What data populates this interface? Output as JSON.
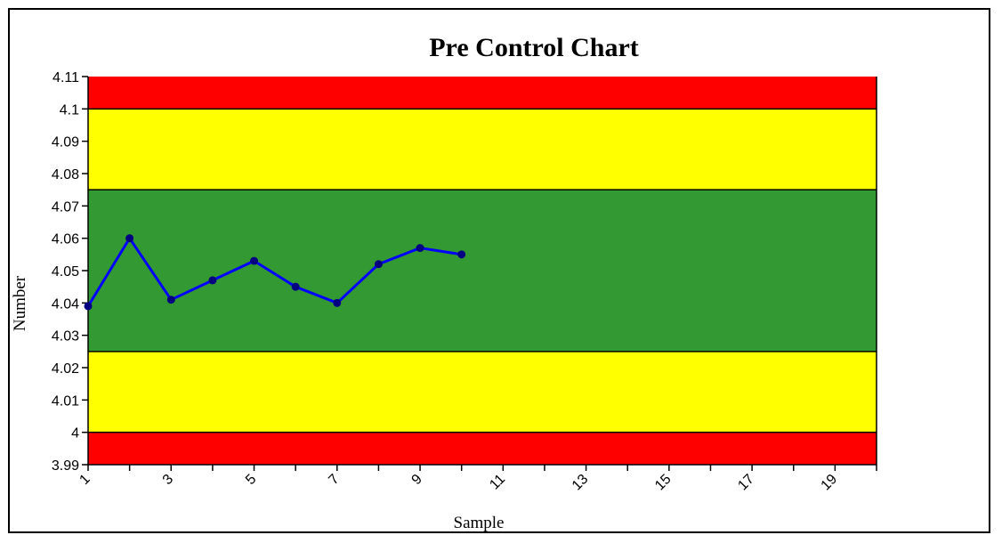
{
  "chart_data": {
    "type": "line",
    "title": "Pre Control Chart",
    "xlabel": "Sample",
    "ylabel": "Number",
    "x_categories": [
      1,
      2,
      3,
      4,
      5,
      6,
      7,
      8,
      9,
      10,
      11,
      12,
      13,
      14,
      15,
      16,
      17,
      18,
      19,
      20
    ],
    "x_tick_labels": [
      "1",
      "3",
      "5",
      "7",
      "9",
      "11",
      "13",
      "15",
      "17",
      "19"
    ],
    "y_tick_labels": [
      "4.11",
      "4.1",
      "4.09",
      "4.08",
      "4.07",
      "4.06",
      "4.05",
      "4.04",
      "4.03",
      "4.02",
      "4.01",
      "4",
      "3.99"
    ],
    "ylim": [
      3.99,
      4.11
    ],
    "series": [
      {
        "x": [
          1,
          2,
          3,
          4,
          5,
          6,
          7,
          8,
          9,
          10
        ],
        "values": [
          4.039,
          4.06,
          4.041,
          4.047,
          4.053,
          4.045,
          4.04,
          4.052,
          4.057,
          4.055
        ]
      }
    ],
    "zones": [
      {
        "from": 4.1,
        "to": 4.11,
        "color": "#ff0000"
      },
      {
        "from": 4.075,
        "to": 4.1,
        "color": "#ffff00"
      },
      {
        "from": 4.025,
        "to": 4.075,
        "color": "#339933"
      },
      {
        "from": 4.0,
        "to": 4.025,
        "color": "#ffff00"
      },
      {
        "from": 3.99,
        "to": 4.0,
        "color": "#ff0000"
      }
    ],
    "line_color": "#0000ff",
    "marker_color": "#000080",
    "grid": false,
    "legend": "none"
  }
}
